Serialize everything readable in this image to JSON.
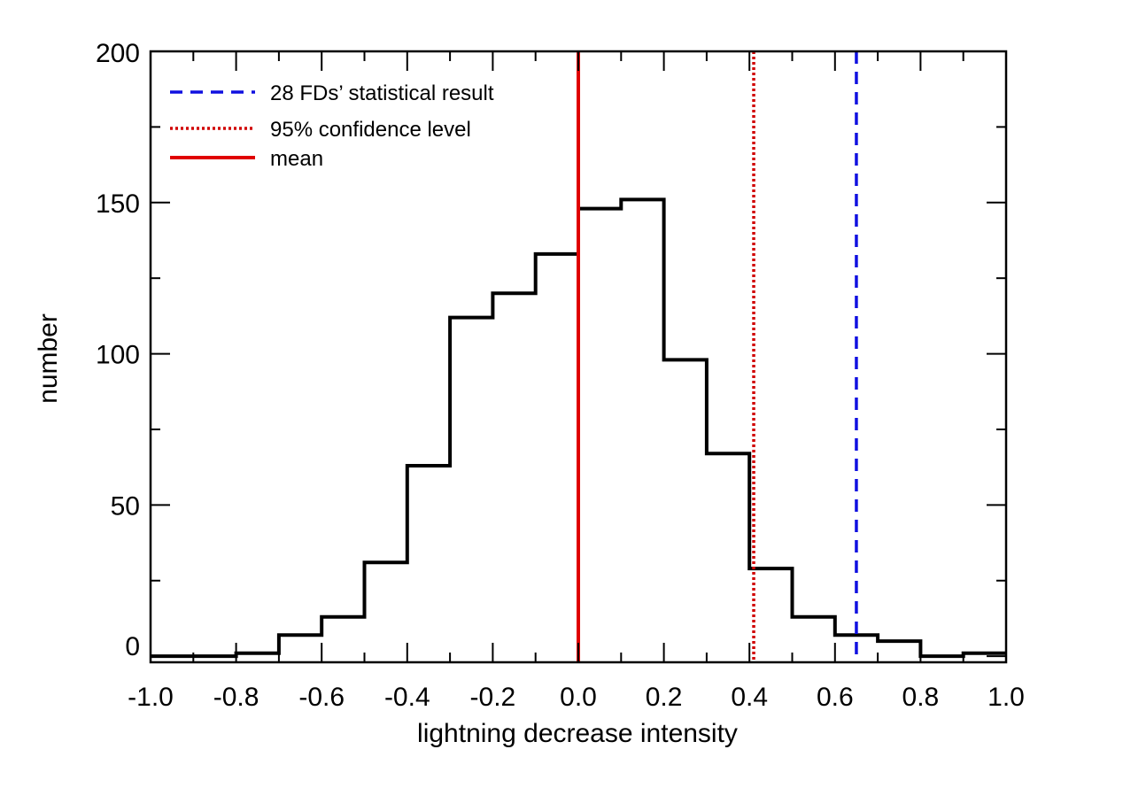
{
  "chart_data": {
    "type": "histogram",
    "xlabel": "lightning decrease intensity",
    "ylabel": "number",
    "xlim": [
      -1.0,
      1.0
    ],
    "ylim": [
      -2,
      200
    ],
    "x_ticks": [
      "-1.0",
      "-0.8",
      "-0.6",
      "-0.4",
      "-0.2",
      "0.0",
      "0.2",
      "0.4",
      "0.6",
      "0.8",
      "1.0"
    ],
    "y_ticks": [
      "0",
      "50",
      "100",
      "150",
      "200"
    ],
    "bin_edges": [
      -1.0,
      -0.9,
      -0.8,
      -0.7,
      -0.6,
      -0.5,
      -0.4,
      -0.3,
      -0.2,
      -0.1,
      0.0,
      0.1,
      0.2,
      0.3,
      0.4,
      0.5,
      0.6,
      0.7,
      0.8,
      0.9,
      1.0
    ],
    "counts": [
      0,
      0,
      1,
      7,
      13,
      31,
      63,
      112,
      120,
      133,
      148,
      151,
      98,
      67,
      29,
      13,
      7,
      5,
      0,
      1
    ],
    "hist_color": "#000000",
    "vlines": [
      {
        "name": "mean",
        "x": 0.0,
        "color": "#e00000",
        "style": "solid"
      },
      {
        "name": "95% confidence level",
        "x": 0.41,
        "color": "#d00000",
        "style": "dotted"
      },
      {
        "name": "28 FDs' statistical result",
        "x": 0.65,
        "color": "#1010e0",
        "style": "dashed"
      }
    ],
    "legend": {
      "position": "top-left",
      "entries": [
        {
          "label": "28 FDs’ statistical result",
          "color": "#1010e0",
          "style": "dashed"
        },
        {
          "label": "95% confidence level",
          "color": "#d00000",
          "style": "dotted"
        },
        {
          "label": "mean",
          "color": "#e00000",
          "style": "solid"
        }
      ]
    },
    "grid": false
  }
}
